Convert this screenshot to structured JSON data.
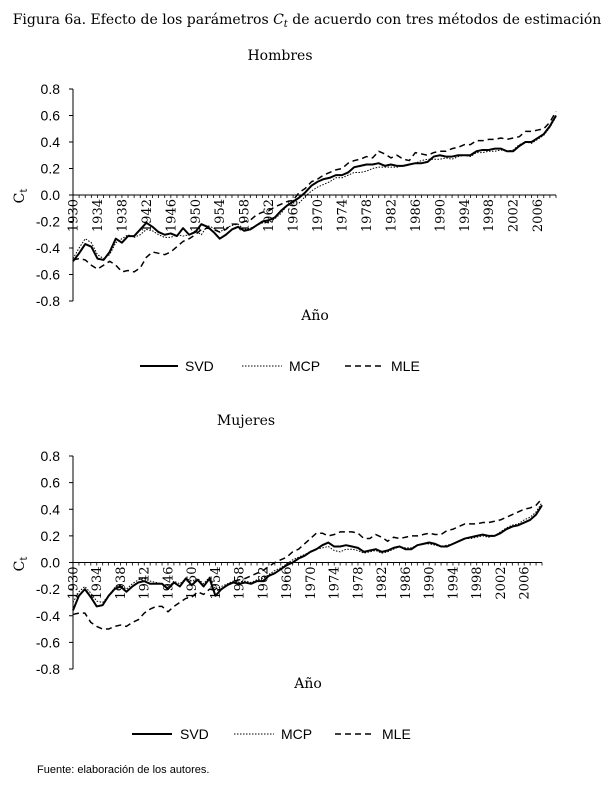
{
  "figure": {
    "title_prefix": "Figura 6a. Efecto de los parámetros ",
    "title_symbol": "C",
    "title_subscript": "t",
    "title_suffix": " de acuerdo con tres métodos de estimación",
    "source": "Fuente: elaboración de los autores."
  },
  "legend": {
    "svd": "SVD",
    "mcp": "MCP",
    "mle": "MLE"
  },
  "chart_data": [
    {
      "type": "line",
      "title": "Hombres",
      "xlabel": "Año",
      "ylabel": "C",
      "ylabel_sub": "t",
      "xlim": [
        1930,
        2009
      ],
      "ylim": [
        -0.8,
        0.8
      ],
      "y_ticks": [
        "0.8",
        "0.6",
        "0.4",
        "0.2",
        "0.0",
        "-0.2",
        "-0.4",
        "-0.6",
        "-0.8"
      ],
      "x_ticks": [
        "1930",
        "1934",
        "1938",
        "1942",
        "1946",
        "1950",
        "1954",
        "1958",
        "1962",
        "1966",
        "1970",
        "1974",
        "1978",
        "1982",
        "1986",
        "1990",
        "1994",
        "1998",
        "2002",
        "2006"
      ],
      "series": [
        {
          "name": "SVD",
          "x": [
            1930,
            1931,
            1932,
            1933,
            1934,
            1935,
            1936,
            1937,
            1938,
            1939,
            1940,
            1941,
            1942,
            1943,
            1944,
            1945,
            1946,
            1947,
            1948,
            1949,
            1950,
            1951,
            1952,
            1953,
            1954,
            1955,
            1956,
            1957,
            1958,
            1959,
            1960,
            1961,
            1962,
            1963,
            1964,
            1965,
            1966,
            1967,
            1968,
            1969,
            1970,
            1971,
            1972,
            1973,
            1974,
            1975,
            1976,
            1977,
            1978,
            1979,
            1980,
            1981,
            1982,
            1983,
            1984,
            1985,
            1986,
            1987,
            1988,
            1989,
            1990,
            1991,
            1992,
            1993,
            1994,
            1995,
            1996,
            1997,
            1998,
            1999,
            2000,
            2001,
            2002,
            2003,
            2004,
            2005,
            2006,
            2007,
            2008,
            2009
          ],
          "values": [
            -0.5,
            -0.44,
            -0.37,
            -0.39,
            -0.48,
            -0.49,
            -0.43,
            -0.33,
            -0.36,
            -0.31,
            -0.31,
            -0.26,
            -0.21,
            -0.24,
            -0.28,
            -0.3,
            -0.29,
            -0.31,
            -0.25,
            -0.3,
            -0.28,
            -0.22,
            -0.24,
            -0.28,
            -0.33,
            -0.3,
            -0.26,
            -0.24,
            -0.27,
            -0.26,
            -0.23,
            -0.2,
            -0.19,
            -0.17,
            -0.12,
            -0.08,
            -0.05,
            -0.02,
            0.02,
            0.07,
            0.1,
            0.12,
            0.13,
            0.15,
            0.15,
            0.17,
            0.21,
            0.22,
            0.23,
            0.23,
            0.24,
            0.22,
            0.23,
            0.22,
            0.22,
            0.23,
            0.24,
            0.24,
            0.25,
            0.29,
            0.3,
            0.29,
            0.29,
            0.3,
            0.3,
            0.3,
            0.33,
            0.34,
            0.34,
            0.35,
            0.35,
            0.33,
            0.33,
            0.37,
            0.4,
            0.4,
            0.43,
            0.46,
            0.52,
            0.6
          ]
        },
        {
          "name": "MCP",
          "x": [
            1930,
            1931,
            1932,
            1933,
            1934,
            1935,
            1936,
            1937,
            1938,
            1939,
            1940,
            1941,
            1942,
            1943,
            1944,
            1945,
            1946,
            1947,
            1948,
            1949,
            1950,
            1951,
            1952,
            1953,
            1954,
            1955,
            1956,
            1957,
            1958,
            1959,
            1960,
            1961,
            1962,
            1963,
            1964,
            1965,
            1966,
            1967,
            1968,
            1969,
            1970,
            1971,
            1972,
            1973,
            1974,
            1975,
            1976,
            1977,
            1978,
            1979,
            1980,
            1981,
            1982,
            1983,
            1984,
            1985,
            1986,
            1987,
            1988,
            1989,
            1990,
            1991,
            1992,
            1993,
            1994,
            1995,
            1996,
            1997,
            1998,
            1999,
            2000,
            2001,
            2002,
            2003,
            2004,
            2005,
            2006,
            2007,
            2008,
            2009
          ],
          "values": [
            -0.48,
            -0.4,
            -0.33,
            -0.36,
            -0.45,
            -0.48,
            -0.45,
            -0.36,
            -0.33,
            -0.3,
            -0.32,
            -0.3,
            -0.26,
            -0.27,
            -0.3,
            -0.32,
            -0.32,
            -0.3,
            -0.31,
            -0.3,
            -0.27,
            -0.3,
            -0.23,
            -0.25,
            -0.28,
            -0.25,
            -0.23,
            -0.22,
            -0.26,
            -0.25,
            -0.23,
            -0.21,
            -0.21,
            -0.18,
            -0.14,
            -0.08,
            -0.06,
            -0.06,
            -0.01,
            0.03,
            0.06,
            0.08,
            0.1,
            0.13,
            0.13,
            0.15,
            0.17,
            0.17,
            0.18,
            0.2,
            0.21,
            0.21,
            0.21,
            0.21,
            0.22,
            0.23,
            0.24,
            0.26,
            0.27,
            0.27,
            0.27,
            0.28,
            0.27,
            0.29,
            0.3,
            0.29,
            0.32,
            0.32,
            0.33,
            0.33,
            0.34,
            0.33,
            0.34,
            0.38,
            0.4,
            0.39,
            0.42,
            0.45,
            0.51,
            0.59
          ]
        },
        {
          "name": "MLE",
          "x": [
            1930,
            1931,
            1932,
            1933,
            1934,
            1935,
            1936,
            1937,
            1938,
            1939,
            1940,
            1941,
            1942,
            1943,
            1944,
            1945,
            1946,
            1947,
            1948,
            1949,
            1950,
            1951,
            1952,
            1953,
            1954,
            1955,
            1956,
            1957,
            1958,
            1959,
            1960,
            1961,
            1962,
            1963,
            1964,
            1965,
            1966,
            1967,
            1968,
            1969,
            1970,
            1971,
            1972,
            1973,
            1974,
            1975,
            1976,
            1977,
            1978,
            1979,
            1980,
            1981,
            1982,
            1983,
            1984,
            1985,
            1986,
            1987,
            1988,
            1989,
            1990,
            1991,
            1992,
            1993,
            1994,
            1995,
            1996,
            1997,
            1998,
            1999,
            2000,
            2001,
            2002,
            2003,
            2004,
            2005,
            2006,
            2007,
            2008,
            2009
          ],
          "values": [
            -0.49,
            -0.48,
            -0.49,
            -0.53,
            -0.56,
            -0.53,
            -0.5,
            -0.53,
            -0.58,
            -0.57,
            -0.58,
            -0.55,
            -0.47,
            -0.43,
            -0.44,
            -0.45,
            -0.43,
            -0.39,
            -0.35,
            -0.33,
            -0.3,
            -0.26,
            -0.25,
            -0.26,
            -0.28,
            -0.26,
            -0.22,
            -0.22,
            -0.2,
            -0.19,
            -0.15,
            -0.13,
            -0.12,
            -0.09,
            -0.07,
            -0.05,
            -0.04,
            0.02,
            0.05,
            0.1,
            0.12,
            0.15,
            0.17,
            0.19,
            0.2,
            0.24,
            0.26,
            0.27,
            0.29,
            0.28,
            0.33,
            0.31,
            0.28,
            0.3,
            0.27,
            0.26,
            0.32,
            0.31,
            0.3,
            0.32,
            0.33,
            0.33,
            0.35,
            0.36,
            0.38,
            0.38,
            0.41,
            0.41,
            0.42,
            0.42,
            0.43,
            0.42,
            0.43,
            0.44,
            0.48,
            0.48,
            0.49,
            0.5,
            0.55,
            0.63
          ]
        }
      ]
    },
    {
      "type": "line",
      "title": "Mujeres",
      "xlabel": "Año",
      "ylabel": "C",
      "ylabel_sub": "t",
      "xlim": [
        1930,
        2009
      ],
      "ylim": [
        -0.8,
        0.8
      ],
      "y_ticks": [
        "0.8",
        "0.6",
        "0.4",
        "0.2",
        "0.0",
        "-0.2",
        "-0.4",
        "-0.6",
        "-0.8"
      ],
      "x_ticks": [
        "1930",
        "1934",
        "1938",
        "1942",
        "1946",
        "1950",
        "1954",
        "1958",
        "1962",
        "1966",
        "1970",
        "1974",
        "1978",
        "1982",
        "1986",
        "1990",
        "1994",
        "1998",
        "2002",
        "2006"
      ],
      "series": [
        {
          "name": "SVD",
          "x": [
            1930,
            1931,
            1932,
            1933,
            1934,
            1935,
            1936,
            1937,
            1938,
            1939,
            1940,
            1941,
            1942,
            1943,
            1944,
            1945,
            1946,
            1947,
            1948,
            1949,
            1950,
            1951,
            1952,
            1953,
            1954,
            1955,
            1956,
            1957,
            1958,
            1959,
            1960,
            1961,
            1962,
            1963,
            1964,
            1965,
            1966,
            1967,
            1968,
            1969,
            1970,
            1971,
            1972,
            1973,
            1974,
            1975,
            1976,
            1977,
            1978,
            1979,
            1980,
            1981,
            1982,
            1983,
            1984,
            1985,
            1986,
            1987,
            1988,
            1989,
            1990,
            1991,
            1992,
            1993,
            1994,
            1995,
            1996,
            1997,
            1998,
            1999,
            2000,
            2001,
            2002,
            2003,
            2004,
            2005,
            2006,
            2007,
            2008,
            2009
          ],
          "values": [
            -0.36,
            -0.25,
            -0.2,
            -0.26,
            -0.33,
            -0.32,
            -0.25,
            -0.2,
            -0.18,
            -0.22,
            -0.18,
            -0.15,
            -0.14,
            -0.16,
            -0.16,
            -0.16,
            -0.2,
            -0.15,
            -0.18,
            -0.12,
            -0.17,
            -0.13,
            -0.18,
            -0.12,
            -0.25,
            -0.2,
            -0.17,
            -0.15,
            -0.16,
            -0.15,
            -0.16,
            -0.14,
            -0.14,
            -0.1,
            -0.08,
            -0.05,
            -0.02,
            0.0,
            0.03,
            0.05,
            0.08,
            0.1,
            0.13,
            0.15,
            0.12,
            0.12,
            0.13,
            0.12,
            0.11,
            0.08,
            0.09,
            0.1,
            0.08,
            0.09,
            0.11,
            0.12,
            0.1,
            0.1,
            0.13,
            0.14,
            0.15,
            0.14,
            0.12,
            0.12,
            0.14,
            0.16,
            0.18,
            0.19,
            0.2,
            0.21,
            0.2,
            0.2,
            0.22,
            0.25,
            0.27,
            0.28,
            0.3,
            0.32,
            0.36,
            0.43
          ]
        },
        {
          "name": "MCP",
          "x": [
            1930,
            1931,
            1932,
            1933,
            1934,
            1935,
            1936,
            1937,
            1938,
            1939,
            1940,
            1941,
            1942,
            1943,
            1944,
            1945,
            1946,
            1947,
            1948,
            1949,
            1950,
            1951,
            1952,
            1953,
            1954,
            1955,
            1956,
            1957,
            1958,
            1959,
            1960,
            1961,
            1962,
            1963,
            1964,
            1965,
            1966,
            1967,
            1968,
            1969,
            1970,
            1971,
            1972,
            1973,
            1974,
            1975,
            1976,
            1977,
            1978,
            1979,
            1980,
            1981,
            1982,
            1983,
            1984,
            1985,
            1986,
            1987,
            1988,
            1989,
            1990,
            1991,
            1992,
            1993,
            1994,
            1995,
            1996,
            1997,
            1998,
            1999,
            2000,
            2001,
            2002,
            2003,
            2004,
            2005,
            2006,
            2007,
            2008,
            2009
          ],
          "values": [
            -0.3,
            -0.22,
            -0.18,
            -0.23,
            -0.29,
            -0.3,
            -0.25,
            -0.19,
            -0.17,
            -0.2,
            -0.16,
            -0.13,
            -0.12,
            -0.14,
            -0.15,
            -0.16,
            -0.19,
            -0.14,
            -0.16,
            -0.12,
            -0.14,
            -0.12,
            -0.16,
            -0.11,
            -0.2,
            -0.18,
            -0.16,
            -0.14,
            -0.15,
            -0.14,
            -0.15,
            -0.13,
            -0.12,
            -0.09,
            -0.06,
            -0.04,
            -0.01,
            0.02,
            0.04,
            0.06,
            0.08,
            0.1,
            0.11,
            0.12,
            0.09,
            0.08,
            0.1,
            0.1,
            0.09,
            0.07,
            0.08,
            0.09,
            0.07,
            0.08,
            0.1,
            0.12,
            0.11,
            0.11,
            0.13,
            0.14,
            0.14,
            0.13,
            0.12,
            0.13,
            0.14,
            0.16,
            0.18,
            0.18,
            0.19,
            0.2,
            0.19,
            0.2,
            0.23,
            0.26,
            0.28,
            0.29,
            0.32,
            0.34,
            0.38,
            0.45
          ]
        },
        {
          "name": "MLE",
          "x": [
            1930,
            1931,
            1932,
            1933,
            1934,
            1935,
            1936,
            1937,
            1938,
            1939,
            1940,
            1941,
            1942,
            1943,
            1944,
            1945,
            1946,
            1947,
            1948,
            1949,
            1950,
            1951,
            1952,
            1953,
            1954,
            1955,
            1956,
            1957,
            1958,
            1959,
            1960,
            1961,
            1962,
            1963,
            1964,
            1965,
            1966,
            1967,
            1968,
            1969,
            1970,
            1971,
            1972,
            1973,
            1974,
            1975,
            1976,
            1977,
            1978,
            1979,
            1980,
            1981,
            1982,
            1983,
            1984,
            1985,
            1986,
            1987,
            1988,
            1989,
            1990,
            1991,
            1992,
            1993,
            1994,
            1995,
            1996,
            1997,
            1998,
            1999,
            2000,
            2001,
            2002,
            2003,
            2004,
            2005,
            2006,
            2007,
            2008,
            2009
          ],
          "values": [
            -0.39,
            -0.38,
            -0.38,
            -0.45,
            -0.48,
            -0.5,
            -0.5,
            -0.48,
            -0.47,
            -0.48,
            -0.45,
            -0.43,
            -0.38,
            -0.35,
            -0.33,
            -0.33,
            -0.37,
            -0.33,
            -0.3,
            -0.27,
            -0.26,
            -0.22,
            -0.24,
            -0.2,
            -0.21,
            -0.2,
            -0.17,
            -0.14,
            -0.13,
            -0.12,
            -0.1,
            -0.08,
            -0.06,
            -0.03,
            0.0,
            0.02,
            0.04,
            0.08,
            0.1,
            0.14,
            0.18,
            0.22,
            0.22,
            0.2,
            0.21,
            0.23,
            0.23,
            0.23,
            0.22,
            0.18,
            0.18,
            0.21,
            0.19,
            0.16,
            0.19,
            0.18,
            0.19,
            0.2,
            0.2,
            0.21,
            0.22,
            0.21,
            0.21,
            0.24,
            0.25,
            0.27,
            0.29,
            0.29,
            0.29,
            0.3,
            0.3,
            0.31,
            0.32,
            0.34,
            0.36,
            0.38,
            0.4,
            0.41,
            0.43,
            0.48
          ]
        }
      ]
    }
  ]
}
